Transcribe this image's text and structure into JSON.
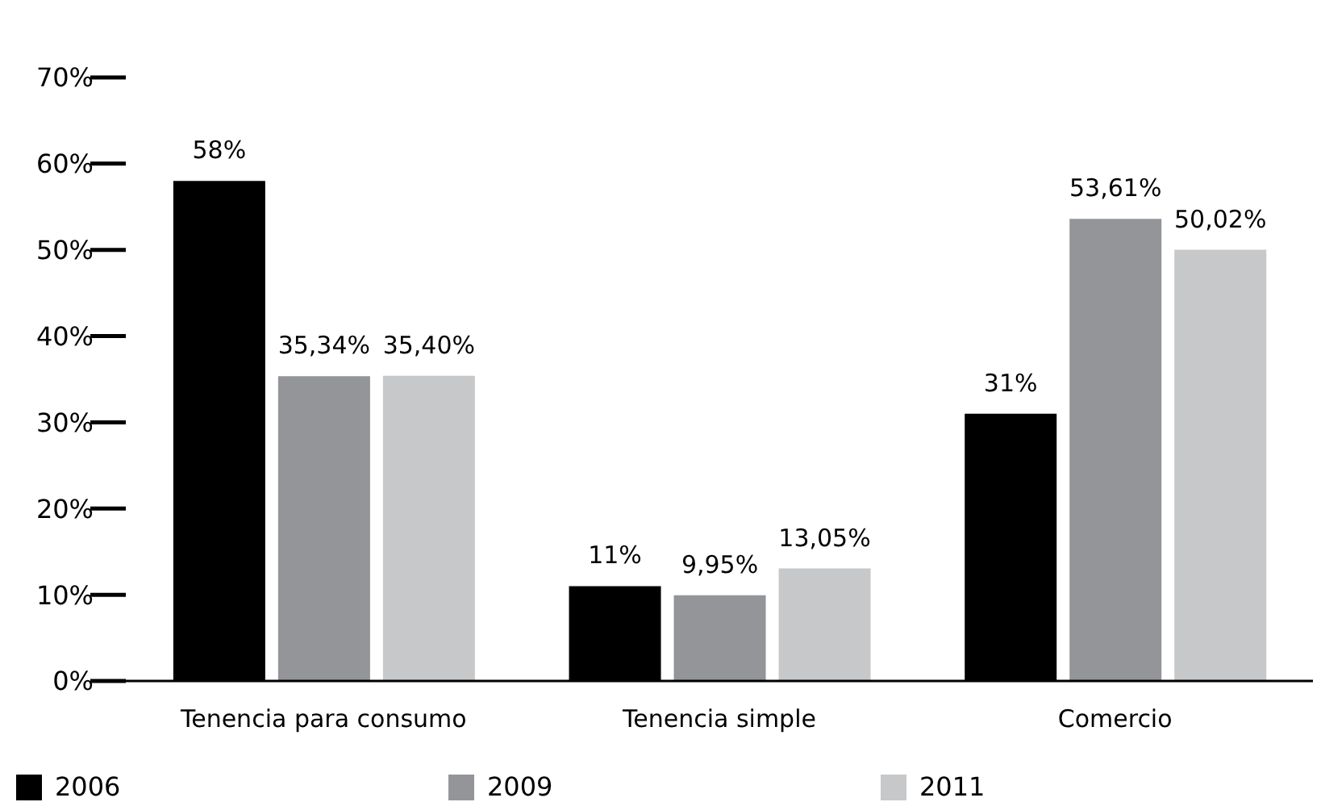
{
  "chart_data": {
    "type": "bar",
    "categories": [
      "Tenencia para consumo",
      "Tenencia simple",
      "Comercio"
    ],
    "series": [
      {
        "name": "2006",
        "color": "#000000",
        "values": [
          58,
          11,
          31
        ],
        "value_labels": [
          "58%",
          "11%",
          "31%"
        ]
      },
      {
        "name": "2009",
        "color": "#939598",
        "values": [
          35.34,
          9.95,
          53.61
        ],
        "value_labels": [
          "35,34%",
          "9,95%",
          "53,61%"
        ]
      },
      {
        "name": "2011",
        "color": "#c7c8ca",
        "values": [
          35.4,
          13.05,
          50.02
        ],
        "value_labels": [
          "35,40%",
          "13,05%",
          "50,02%"
        ]
      }
    ],
    "ylim": [
      0,
      70
    ],
    "yticks": [
      {
        "value": 0,
        "label": "0%"
      },
      {
        "value": 10,
        "label": "10%"
      },
      {
        "value": 20,
        "label": "20%"
      },
      {
        "value": 30,
        "label": "30%"
      },
      {
        "value": 40,
        "label": "40%"
      },
      {
        "value": 50,
        "label": "50%"
      },
      {
        "value": 60,
        "label": "60%"
      },
      {
        "value": 70,
        "label": "70%"
      }
    ],
    "grid": false,
    "legend": "bottom"
  }
}
